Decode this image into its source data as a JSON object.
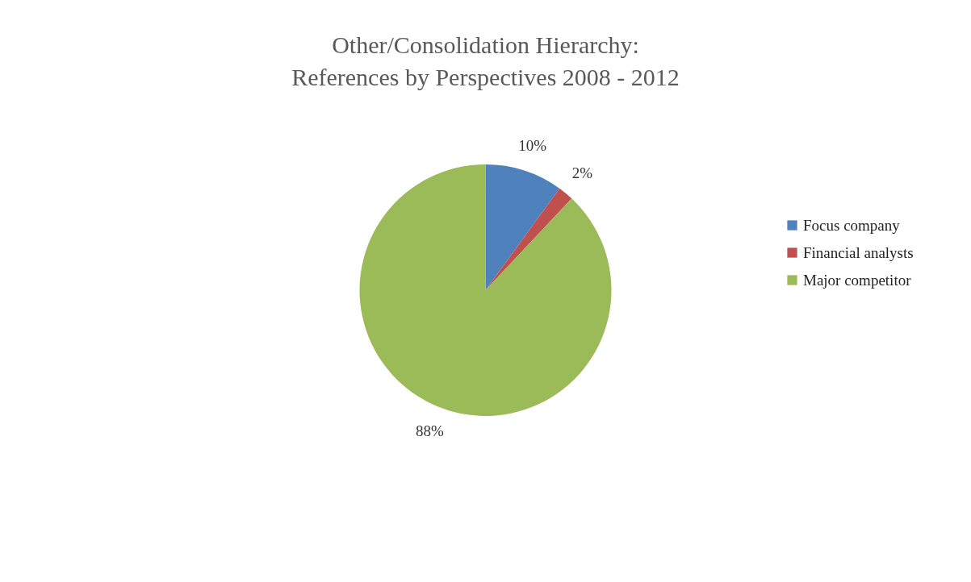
{
  "chart_data": {
    "type": "pie",
    "title": [
      "Other/Consolidation Hierarchy:",
      "References by Perspectives 2008 - 2012"
    ],
    "categories": [
      "Focus company",
      "Financial analysts",
      "Major competitor"
    ],
    "values": [
      10,
      2,
      88
    ],
    "colors": [
      "#4f81bd",
      "#c0504d",
      "#9bbb59"
    ],
    "value_labels": [
      "10%",
      "2%",
      "88%"
    ],
    "legend": "right"
  }
}
